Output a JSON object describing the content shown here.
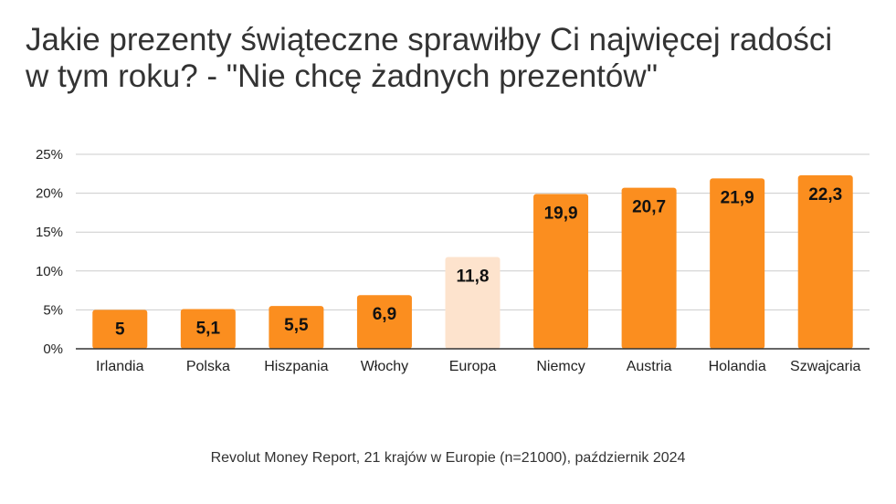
{
  "title_lines": [
    "Jakie prezenty świąteczne sprawiłby Ci najwięcej radości",
    "w tym roku? - \"Nie chcę żadnych prezentów\""
  ],
  "source": "Revolut Money Report, 21 krajów w Europie (n=21000), październik 2024",
  "colors": {
    "bar": "#fb8e1f",
    "highlight": "#fde3cd",
    "grid": "#cccccc",
    "axis": "#333333",
    "text": "#222222"
  },
  "chart_data": {
    "type": "bar",
    "categories": [
      "Irlandia",
      "Polska",
      "Hiszpania",
      "Włochy",
      "Europa",
      "Niemcy",
      "Austria",
      "Holandia",
      "Szwajcaria"
    ],
    "values": [
      5,
      5.1,
      5.5,
      6.9,
      11.8,
      19.9,
      20.7,
      21.9,
      22.3
    ],
    "data_labels": [
      "5",
      "5,1",
      "5,5",
      "6,9",
      "11,8",
      "19,9",
      "20,7",
      "21,9",
      "22,3"
    ],
    "highlight_category": "Europa",
    "ylim": [
      0,
      25
    ],
    "yticks": [
      0,
      5,
      10,
      15,
      20,
      25
    ],
    "ytick_labels": [
      "0%",
      "5%",
      "10%",
      "15%",
      "20%",
      "25%"
    ],
    "xlabel": "",
    "ylabel": "",
    "grid": true,
    "legend": "none"
  }
}
